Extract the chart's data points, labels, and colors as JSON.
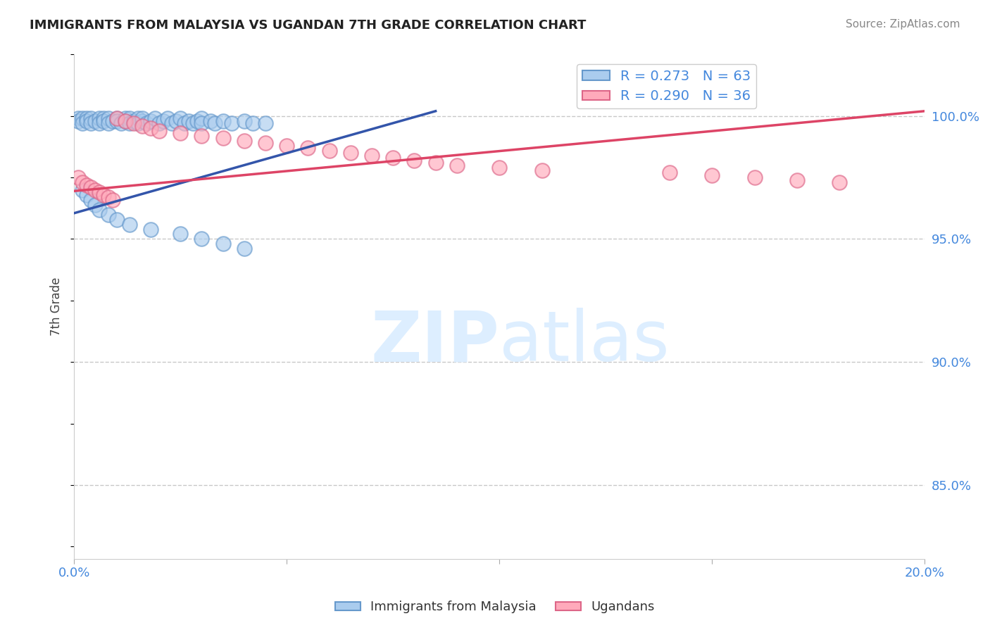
{
  "title": "IMMIGRANTS FROM MALAYSIA VS UGANDAN 7TH GRADE CORRELATION CHART",
  "ylabel": "7th Grade",
  "source_text": "Source: ZipAtlas.com",
  "r_blue": 0.273,
  "n_blue": 63,
  "r_pink": 0.29,
  "n_pink": 36,
  "legend_label_blue": "Immigrants from Malaysia",
  "legend_label_pink": "Ugandans",
  "blue_color": "#aaccee",
  "blue_edge_color": "#6699cc",
  "blue_line_color": "#3355aa",
  "pink_color": "#ffaabb",
  "pink_edge_color": "#dd6688",
  "pink_line_color": "#dd4466",
  "background_color": "#ffffff",
  "grid_color": "#bbbbbb",
  "title_color": "#222222",
  "axis_label_color": "#4488dd",
  "watermark_color": "#ddeeff",
  "xlim": [
    0.0,
    0.2
  ],
  "ylim": [
    0.82,
    1.025
  ],
  "yticks": [
    0.85,
    0.9,
    0.95,
    1.0
  ],
  "ytick_labels": [
    "85.0%",
    "90.0%",
    "95.0%",
    "100.0%"
  ],
  "blue_scatter_x": [
    0.001,
    0.001,
    0.002,
    0.002,
    0.003,
    0.003,
    0.004,
    0.004,
    0.005,
    0.006,
    0.006,
    0.007,
    0.007,
    0.008,
    0.008,
    0.009,
    0.01,
    0.01,
    0.011,
    0.012,
    0.012,
    0.013,
    0.013,
    0.014,
    0.015,
    0.015,
    0.016,
    0.016,
    0.017,
    0.018,
    0.019,
    0.02,
    0.021,
    0.022,
    0.023,
    0.024,
    0.025,
    0.026,
    0.027,
    0.028,
    0.029,
    0.03,
    0.03,
    0.032,
    0.033,
    0.035,
    0.037,
    0.04,
    0.042,
    0.045,
    0.002,
    0.003,
    0.004,
    0.005,
    0.006,
    0.008,
    0.01,
    0.013,
    0.018,
    0.025,
    0.03,
    0.035,
    0.04
  ],
  "blue_scatter_y": [
    0.999,
    0.998,
    0.999,
    0.997,
    0.999,
    0.998,
    0.999,
    0.997,
    0.998,
    0.999,
    0.997,
    0.999,
    0.998,
    0.999,
    0.997,
    0.998,
    0.999,
    0.998,
    0.997,
    0.999,
    0.998,
    0.999,
    0.997,
    0.998,
    0.999,
    0.997,
    0.998,
    0.999,
    0.997,
    0.998,
    0.999,
    0.997,
    0.998,
    0.999,
    0.997,
    0.998,
    0.999,
    0.997,
    0.998,
    0.997,
    0.998,
    0.999,
    0.997,
    0.998,
    0.997,
    0.998,
    0.997,
    0.998,
    0.997,
    0.997,
    0.97,
    0.968,
    0.966,
    0.964,
    0.962,
    0.96,
    0.958,
    0.956,
    0.954,
    0.952,
    0.95,
    0.948,
    0.946
  ],
  "pink_scatter_x": [
    0.001,
    0.002,
    0.003,
    0.004,
    0.005,
    0.006,
    0.007,
    0.008,
    0.009,
    0.01,
    0.012,
    0.014,
    0.016,
    0.018,
    0.02,
    0.025,
    0.03,
    0.035,
    0.04,
    0.045,
    0.05,
    0.055,
    0.06,
    0.065,
    0.07,
    0.075,
    0.08,
    0.085,
    0.09,
    0.1,
    0.11,
    0.14,
    0.15,
    0.16,
    0.17,
    0.18
  ],
  "pink_scatter_y": [
    0.975,
    0.973,
    0.972,
    0.971,
    0.97,
    0.969,
    0.968,
    0.967,
    0.966,
    0.999,
    0.998,
    0.997,
    0.996,
    0.995,
    0.994,
    0.993,
    0.992,
    0.991,
    0.99,
    0.989,
    0.988,
    0.987,
    0.986,
    0.985,
    0.984,
    0.983,
    0.982,
    0.981,
    0.98,
    0.979,
    0.978,
    0.977,
    0.976,
    0.975,
    0.974,
    0.973
  ],
  "blue_trend_x": [
    0.0,
    0.085
  ],
  "blue_trend_y": [
    0.9605,
    1.002
  ],
  "pink_trend_x": [
    0.0,
    0.2
  ],
  "pink_trend_y": [
    0.9695,
    1.002
  ]
}
